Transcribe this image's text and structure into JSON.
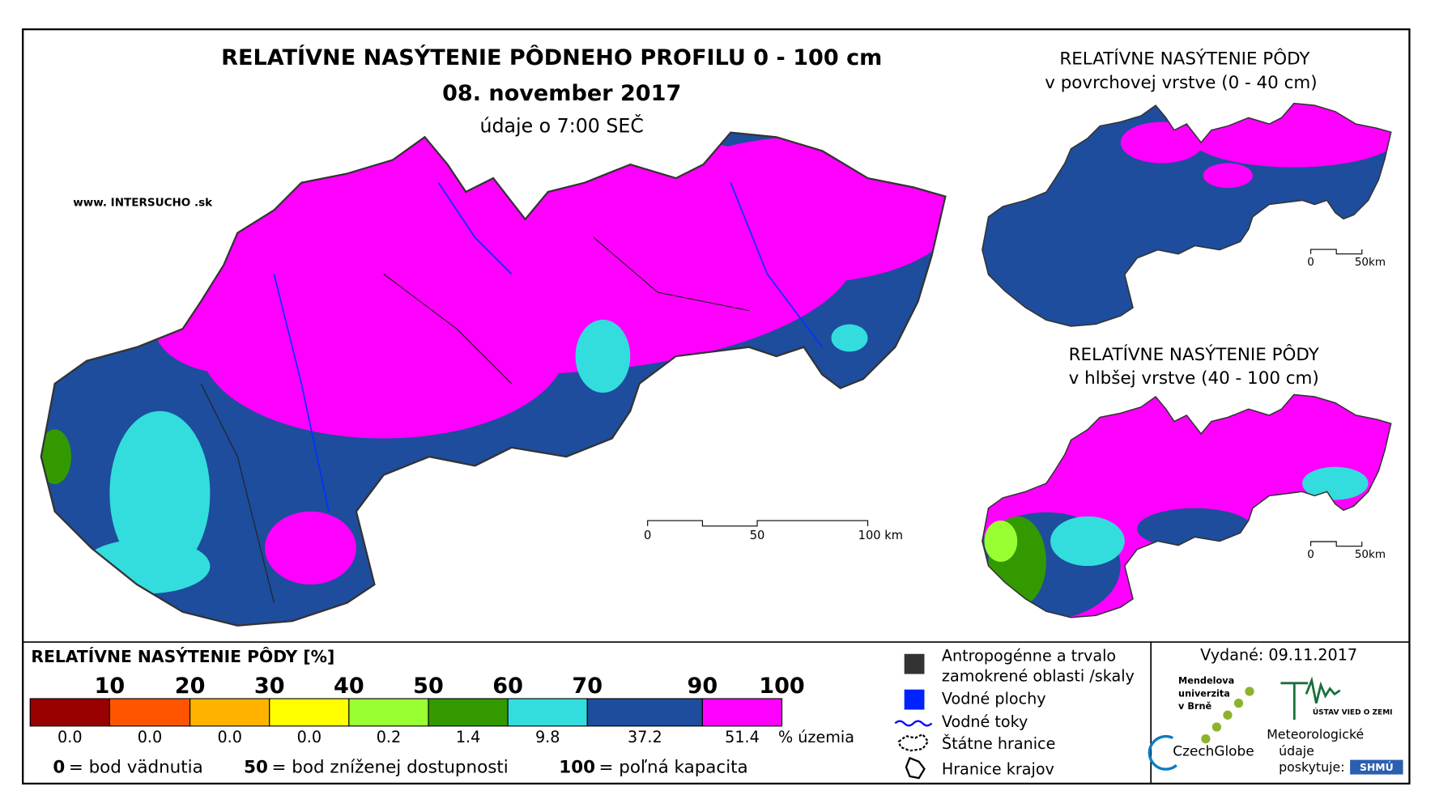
{
  "header": {
    "title": "RELATÍVNE NASÝTENIE PÔDNEHO PROFILU 0 - 100 cm",
    "date": "08. november 2017",
    "time_note": "údaje o 7:00 SEČ",
    "website": "www. INTERSUCHO .sk"
  },
  "main_map": {
    "scale": [
      "0",
      "50",
      "100 km"
    ]
  },
  "inset_maps": [
    {
      "title": "RELATÍVNE NASÝTENIE PÔDY",
      "subtitle": "v povrchovej vrstve (0 - 40 cm)",
      "scale": [
        "0",
        "50km"
      ]
    },
    {
      "title": "RELATÍVNE NASÝTENIE PÔDY",
      "subtitle": "v hlbšej vrstve (40 - 100 cm)",
      "scale": [
        "0",
        "50km"
      ]
    }
  ],
  "legend": {
    "title": "RELATÍVNE NASÝTENIE PÔDY [%]",
    "bins": [
      {
        "upper": "10",
        "color": "#990000",
        "share": "0.0"
      },
      {
        "upper": "20",
        "color": "#ff5500",
        "share": "0.0"
      },
      {
        "upper": "30",
        "color": "#ffb300",
        "share": "0.0"
      },
      {
        "upper": "40",
        "color": "#ffff00",
        "share": "0.0"
      },
      {
        "upper": "50",
        "color": "#99ff33",
        "share": "0.2"
      },
      {
        "upper": "60",
        "color": "#339900",
        "share": "1.4"
      },
      {
        "upper": "70",
        "color": "#33dddd",
        "share": "9.8"
      },
      {
        "upper": "90",
        "color": "#1d4d9c",
        "share": "37.2"
      },
      {
        "upper": "100",
        "color": "#ff00ff",
        "share": "51.4"
      }
    ],
    "share_unit": "% územia",
    "notes": [
      {
        "number": "0",
        "text": "= bod vädnutia"
      },
      {
        "number": "50",
        "text": "= bod zníženej dostupnosti"
      },
      {
        "number": "100",
        "text": "= poľná kapacita"
      }
    ]
  },
  "symbols": [
    {
      "lines": [
        "Antropogénne a trvalo",
        "zamokrené oblasti /skaly"
      ]
    },
    {
      "lines": [
        "Vodné plochy"
      ]
    },
    {
      "lines": [
        "Vodné toky"
      ]
    },
    {
      "lines": [
        "Štátne hranice"
      ]
    },
    {
      "lines": [
        "Hranice krajov"
      ]
    }
  ],
  "issued": "Vydané: 09.11.2017",
  "logos": {
    "mendel": [
      "Mendelova",
      "univerzita",
      "v Brně"
    ],
    "czechglobe": "CzechGlobe",
    "ustav": "ÚSTAV VIED O ZEMI",
    "shmu_note": [
      "Meteorologické",
      "údaje",
      "poskytuje:"
    ],
    "shmu": "SHMÚ"
  }
}
